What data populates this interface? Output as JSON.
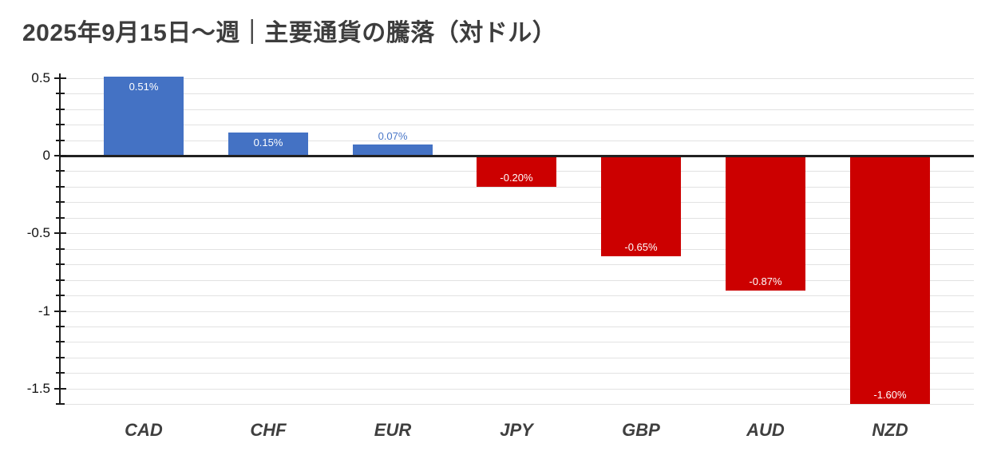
{
  "title": "2025年9月15日～週｜主要通貨の騰落（対ドル）",
  "colors": {
    "background": "#FFFFFF",
    "title_text": "#3D3D3D",
    "positive_bar": "#4472C4",
    "negative_bar": "#CC0000",
    "label_inside_bar": "#FFFFFF",
    "label_outside_bar": "#4A77C8",
    "gridline": "#E2E2E2",
    "zero_line": "#212121",
    "axis_text": "#111111",
    "category_text": "#3F3F3F"
  },
  "chart_data": {
    "type": "bar",
    "title": "2025年9月15日～週｜主要通貨の騰落（対ドル）",
    "xlabel": "",
    "ylabel": "",
    "categories": [
      "CAD",
      "CHF",
      "EUR",
      "JPY",
      "GBP",
      "AUD",
      "NZD"
    ],
    "values": [
      0.51,
      0.15,
      0.07,
      -0.2,
      -0.65,
      -0.87,
      -1.6
    ],
    "bar_labels": [
      "0.51%",
      "0.15%",
      "0.07%",
      "-0.20%",
      "-0.65%",
      "-0.87%",
      "-1.60%"
    ],
    "unit": "%",
    "ylim": [
      -1.6,
      0.53
    ],
    "y_major_ticks": [
      0.5,
      0,
      -0.5,
      -1,
      -1.5
    ],
    "y_major_tick_labels": [
      "0.5",
      "0",
      "-0.5",
      "-1",
      "-1.5"
    ],
    "y_minor_tick_step": 0.1,
    "grid": true,
    "legend": "none",
    "positive_color": "#4472C4",
    "negative_color": "#CC0000"
  }
}
